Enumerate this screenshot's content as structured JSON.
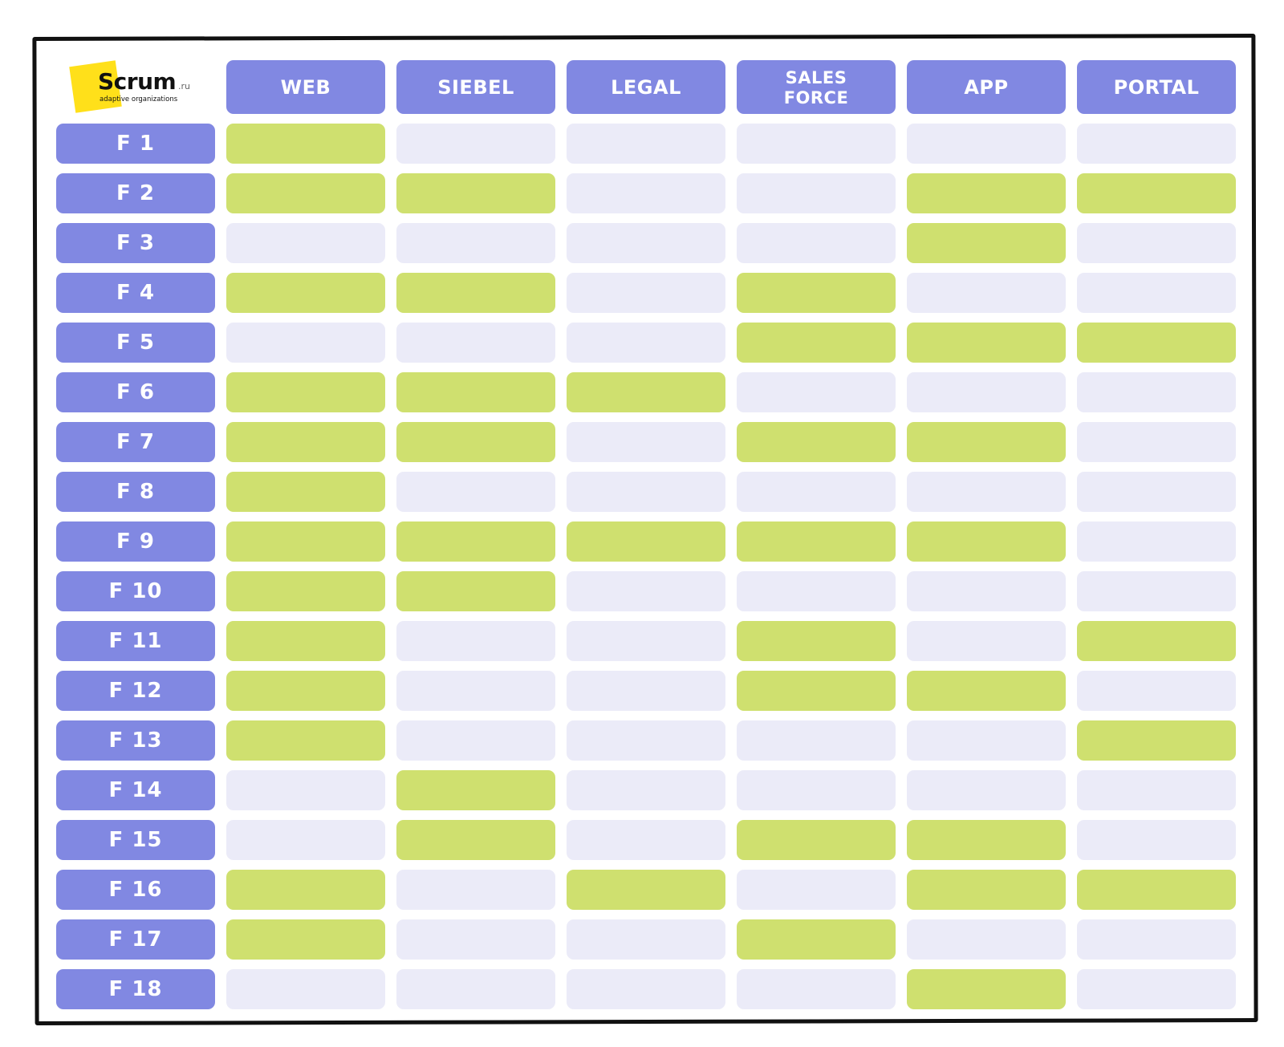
{
  "logo": {
    "word": "Scrum",
    "tld": ".ru",
    "tagline": "adaptive organizations"
  },
  "colors": {
    "header": "#8188e2",
    "active_cell": "#cfe06f",
    "empty_cell": "#ebebf8",
    "logo_accent": "#ffe01a"
  },
  "columns": [
    "WEB",
    "SIEBEL",
    "LEGAL",
    "SALES\nFORCE",
    "APP",
    "PORTAL"
  ],
  "rows": [
    {
      "label": "F 1",
      "cells": [
        1,
        0,
        0,
        0,
        0,
        0
      ]
    },
    {
      "label": "F 2",
      "cells": [
        1,
        1,
        0,
        0,
        1,
        1
      ]
    },
    {
      "label": "F 3",
      "cells": [
        0,
        0,
        0,
        0,
        1,
        0
      ]
    },
    {
      "label": "F 4",
      "cells": [
        1,
        1,
        0,
        1,
        0,
        0
      ]
    },
    {
      "label": "F 5",
      "cells": [
        0,
        0,
        0,
        1,
        1,
        1
      ]
    },
    {
      "label": "F 6",
      "cells": [
        1,
        1,
        1,
        0,
        0,
        0
      ]
    },
    {
      "label": "F 7",
      "cells": [
        1,
        1,
        0,
        1,
        1,
        0
      ]
    },
    {
      "label": "F 8",
      "cells": [
        1,
        0,
        0,
        0,
        0,
        0
      ]
    },
    {
      "label": "F 9",
      "cells": [
        1,
        1,
        1,
        1,
        1,
        0
      ]
    },
    {
      "label": "F 10",
      "cells": [
        1,
        1,
        0,
        0,
        0,
        0
      ]
    },
    {
      "label": "F 11",
      "cells": [
        1,
        0,
        0,
        1,
        0,
        1
      ]
    },
    {
      "label": "F 12",
      "cells": [
        1,
        0,
        0,
        1,
        1,
        0
      ]
    },
    {
      "label": "F 13",
      "cells": [
        1,
        0,
        0,
        0,
        0,
        1
      ]
    },
    {
      "label": "F 14",
      "cells": [
        0,
        1,
        0,
        0,
        0,
        0
      ]
    },
    {
      "label": "F 15",
      "cells": [
        0,
        1,
        0,
        1,
        1,
        0
      ]
    },
    {
      "label": "F 16",
      "cells": [
        1,
        0,
        1,
        0,
        1,
        1
      ]
    },
    {
      "label": "F 17",
      "cells": [
        1,
        0,
        0,
        1,
        0,
        0
      ]
    },
    {
      "label": "F 18",
      "cells": [
        0,
        0,
        0,
        0,
        1,
        0
      ]
    }
  ]
}
